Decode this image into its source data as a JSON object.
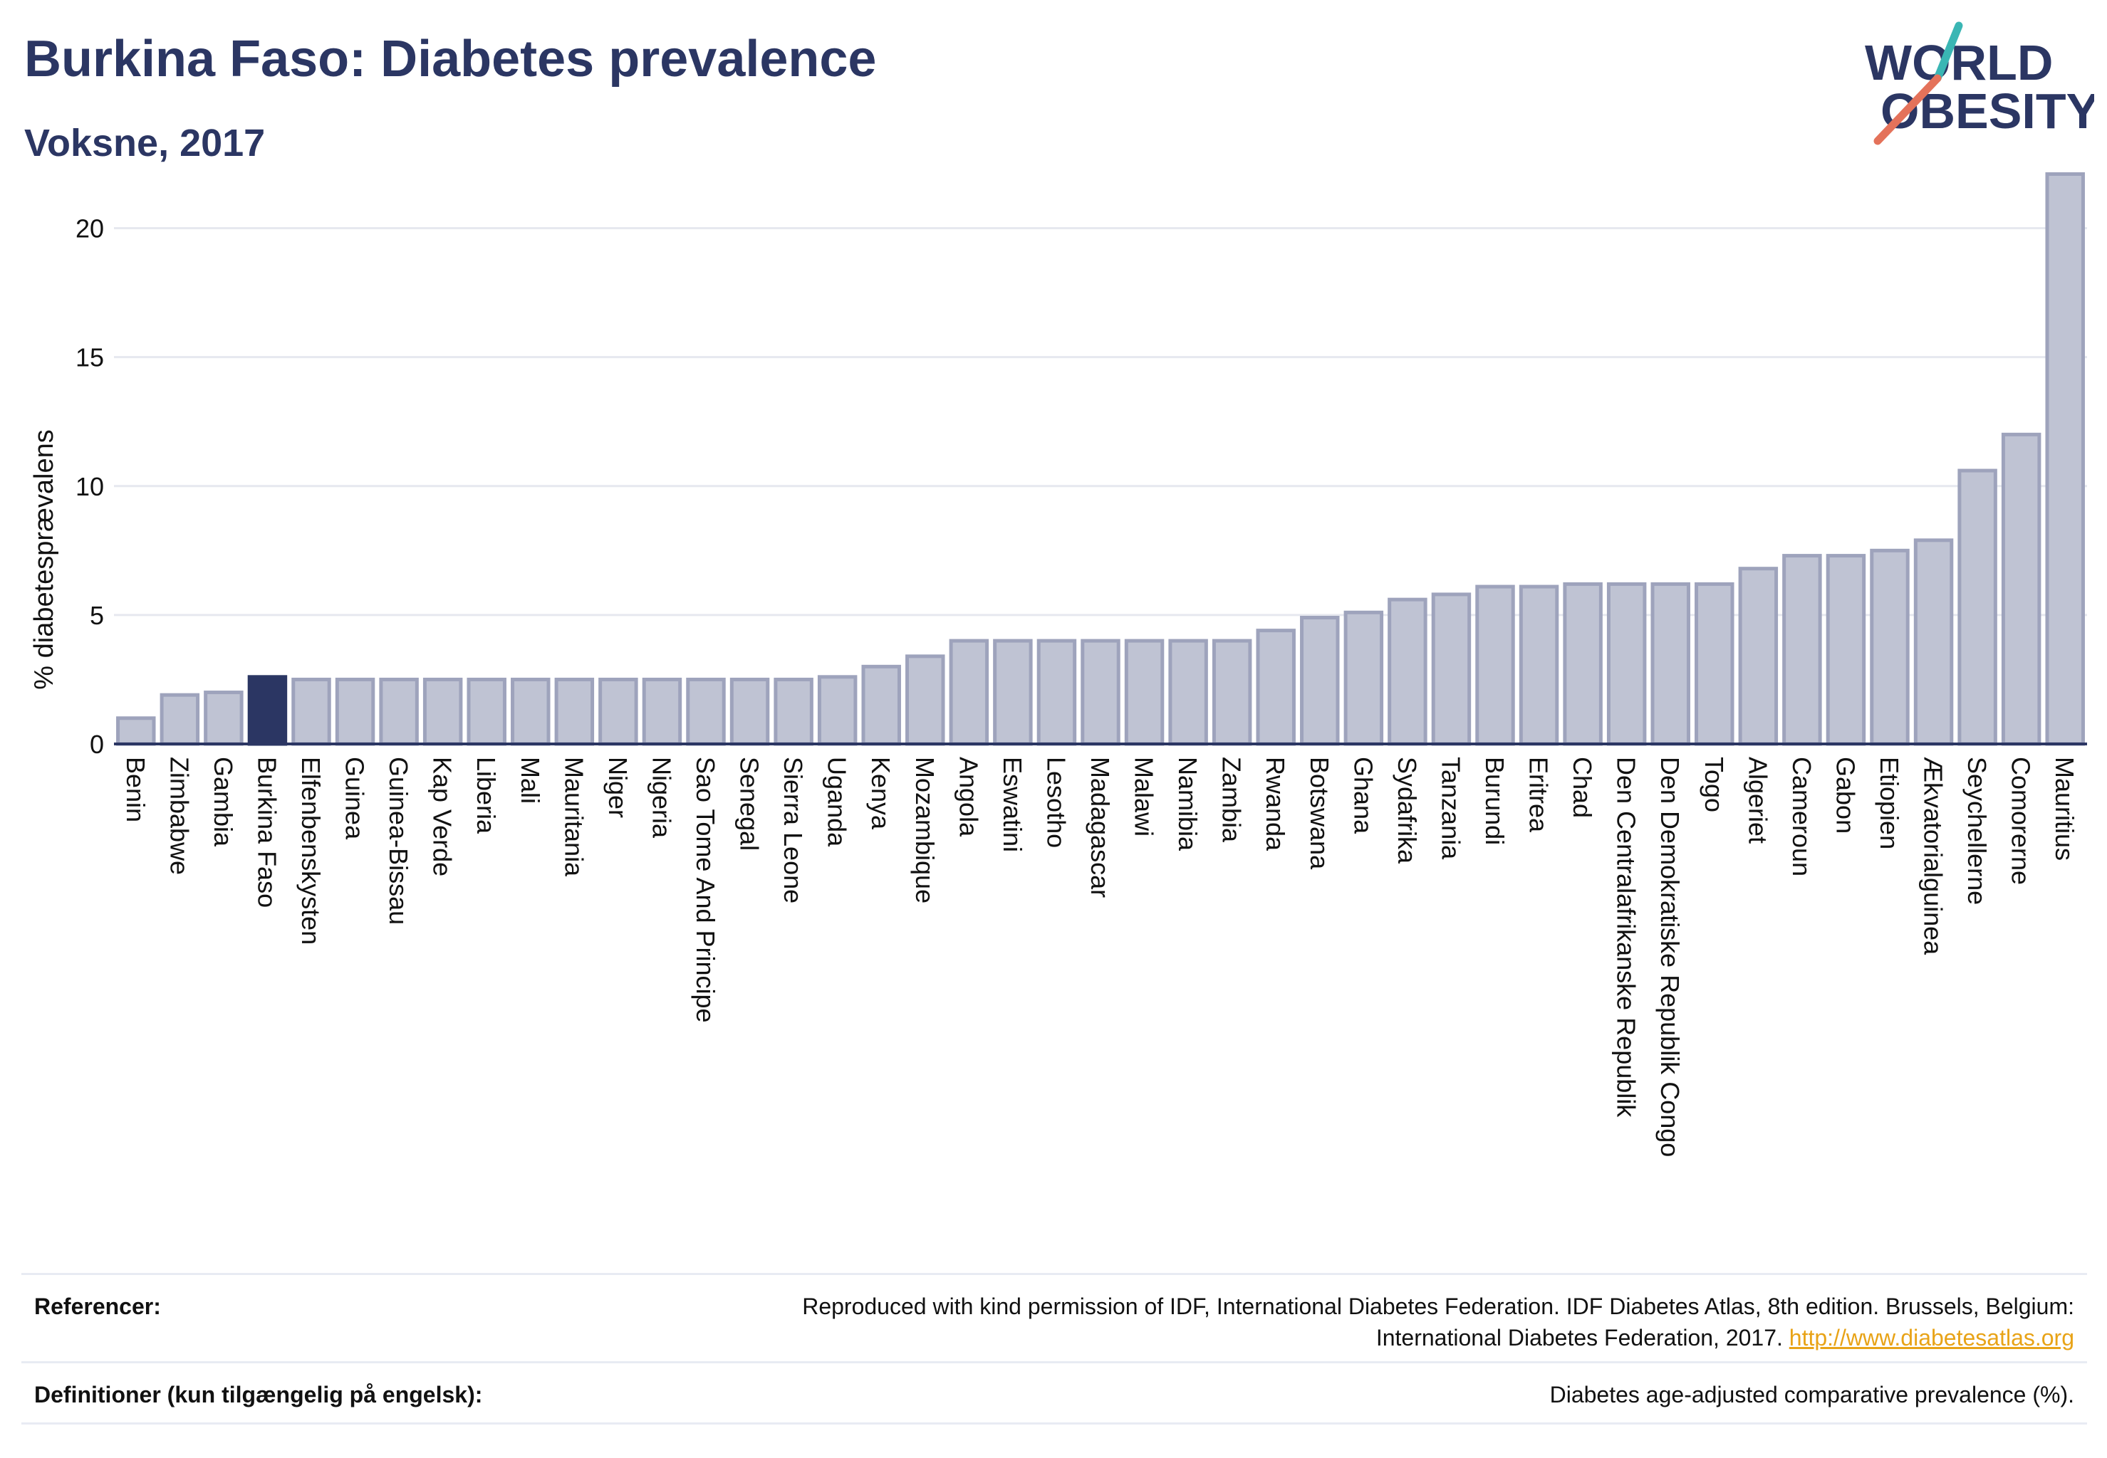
{
  "header": {
    "title": "Burkina Faso: Diabetes prevalence",
    "subtitle": "Voksne, 2017"
  },
  "logo": {
    "line1": "WORLD",
    "line2": "OBESITY",
    "colors": {
      "text": "#2b3663",
      "slash_teal": "#3ab6b4",
      "slash_coral": "#e4725a"
    }
  },
  "chart_data": {
    "type": "bar",
    "title": "",
    "xlabel": "",
    "ylabel": "% diabetesprævalens",
    "ylim": [
      0,
      22.5
    ],
    "yticks": [
      0,
      5,
      10,
      15,
      20
    ],
    "grid": true,
    "highlight": "Burkina Faso",
    "colors": {
      "highlight": "#2b3663",
      "bar_fill": "#bfc3d3",
      "bar_stroke": "#9ea3bc"
    },
    "categories": [
      "Benin",
      "Zimbabwe",
      "Gambia",
      "Burkina Faso",
      "Elfenbenskysten",
      "Guinea",
      "Guinea-Bissau",
      "Kap Verde",
      "Liberia",
      "Mali",
      "Mauritania",
      "Niger",
      "Nigeria",
      "Sao Tome And Principe",
      "Senegal",
      "Sierra Leone",
      "Uganda",
      "Kenya",
      "Mozambique",
      "Angola",
      "Eswatini",
      "Lesotho",
      "Madagascar",
      "Malawi",
      "Namibia",
      "Zambia",
      "Rwanda",
      "Botswana",
      "Ghana",
      "Sydafrika",
      "Tanzania",
      "Burundi",
      "Eritrea",
      "Chad",
      "Den Centralafrikanske Republik",
      "Den Demokratiske Republik Congo",
      "Togo",
      "Algeriet",
      "Cameroun",
      "Gabon",
      "Etiopien",
      "Ækvatorialguinea",
      "Seychellerne",
      "Comorerne",
      "Mauritius"
    ],
    "values": [
      1.0,
      1.9,
      2.0,
      2.6,
      2.5,
      2.5,
      2.5,
      2.5,
      2.5,
      2.5,
      2.5,
      2.5,
      2.5,
      2.5,
      2.5,
      2.5,
      2.6,
      3.0,
      3.4,
      4.0,
      4.0,
      4.0,
      4.0,
      4.0,
      4.0,
      4.0,
      4.4,
      4.9,
      5.1,
      5.6,
      5.8,
      6.1,
      6.1,
      6.2,
      6.2,
      6.2,
      6.2,
      6.8,
      7.3,
      7.3,
      7.5,
      7.9,
      10.6,
      12.0,
      22.1
    ]
  },
  "footer": {
    "references_label": "Referencer:",
    "references_text_line1": "Reproduced with kind permission of IDF, International Diabetes Federation. IDF Diabetes Atlas, 8th edition. Brussels, Belgium:",
    "references_text_line2": "International Diabetes Federation, 2017.",
    "references_link": "http://www.diabetesatlas.org",
    "definitions_label": "Definitioner (kun tilgængelig på engelsk):",
    "definitions_text": "Diabetes age-adjusted comparative prevalence (%)."
  }
}
